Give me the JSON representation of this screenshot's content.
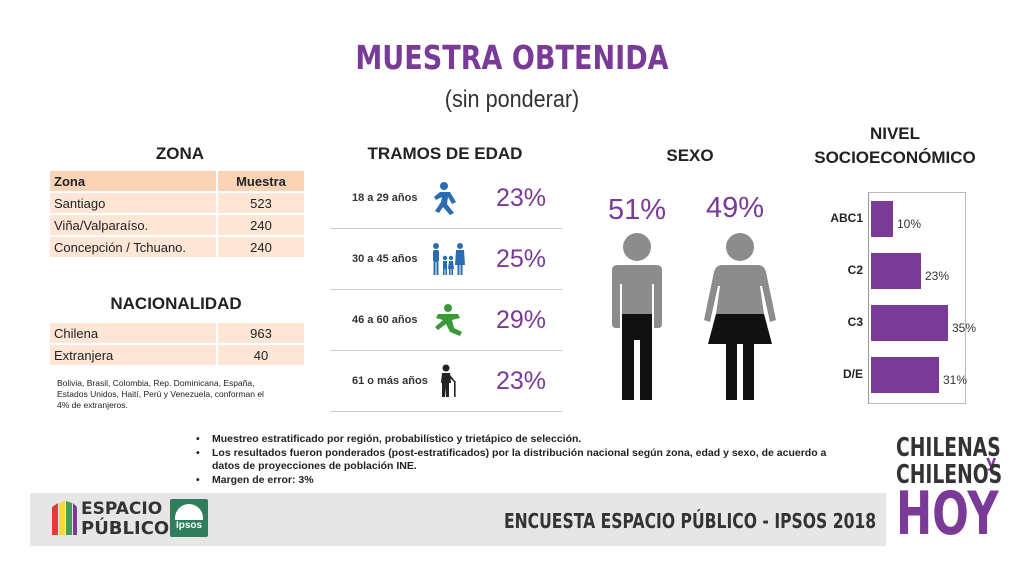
{
  "header": {
    "title": "MUESTRA OBTENIDA",
    "subtitle": "(sin ponderar)"
  },
  "zona": {
    "heading": "ZONA",
    "col_zona": "Zona",
    "col_muestra": "Muestra",
    "rows": [
      {
        "zona": "Santiago",
        "muestra": "523"
      },
      {
        "zona": "Viña/Valparaíso.",
        "muestra": "240"
      },
      {
        "zona": "Concepción / Tchuano.",
        "muestra": "240"
      }
    ]
  },
  "nacionalidad": {
    "heading": "NACIONALIDAD",
    "rows": [
      {
        "label": "Chilena",
        "value": "963"
      },
      {
        "label": "Extranjera",
        "value": "40"
      }
    ],
    "note": "Bolivia, Brasil, Colombia, Rep. Dominicana, España, Estados Unidos, Haití, Perú y Venezuela, conforman el 4% de extranjeros."
  },
  "edad": {
    "heading": "TRAMOS DE EDAD",
    "rows": [
      {
        "label": "18 a 29 años",
        "pct": "23%",
        "icon": "running-person-icon",
        "color": "#2b6cb0"
      },
      {
        "label": "30 a 45 años",
        "pct": "25%",
        "icon": "family-icon",
        "color": "#2b6cb0"
      },
      {
        "label": "46 a 60 años",
        "pct": "29%",
        "icon": "stretching-person-icon",
        "color": "#3a9a3a"
      },
      {
        "label": "61 o más años",
        "pct": "23%",
        "icon": "elderly-person-icon",
        "color": "#222222"
      }
    ]
  },
  "sexo": {
    "heading": "SEXO",
    "male_pct": "51%",
    "female_pct": "49%"
  },
  "chart_data": {
    "type": "bar",
    "orientation": "horizontal",
    "title": "NIVEL SOCIOECONÓMICO",
    "categories": [
      "ABC1",
      "C2",
      "C3",
      "D/E"
    ],
    "values": [
      10,
      23,
      35,
      31
    ],
    "value_labels": [
      "10%",
      "23%",
      "35%",
      "31%"
    ],
    "xlim": [
      0,
      42
    ],
    "color": "#7a3a98"
  },
  "bullets": [
    "Muestreo estratificado por región, probabilístico y trietápico de selección.",
    "Los resultados fueron ponderados (post-estratificados) por la distribución nacional según zona, edad y sexo, de acuerdo a datos de proyecciones de población INE.",
    "Margen de error: 3%"
  ],
  "footer": {
    "survey": "ENCUESTA ESPACIO PÚBLICO - IPSOS 2018",
    "logo_ep_line1": "ESPACIO",
    "logo_ep_line2": "PÚBLICO",
    "logo_ipsos": "Ipsos"
  },
  "brand": {
    "line1": "CHILENAS",
    "y": "y",
    "line2": "CHILENOS",
    "line3": "HOY"
  },
  "colors": {
    "accent": "#7a3a98",
    "table_fill": "#fde6d6",
    "table_header": "#fbd4b8"
  }
}
